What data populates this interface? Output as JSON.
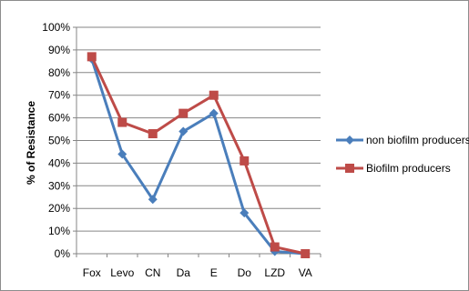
{
  "chart_data": {
    "type": "line",
    "title": "",
    "xlabel": "",
    "ylabel": "% of Resistance",
    "categories": [
      "Fox",
      "Levo",
      "CN",
      "Da",
      "E",
      "Do",
      "LZD",
      "VA"
    ],
    "y_ticks": [
      "0%",
      "10%",
      "20%",
      "30%",
      "40%",
      "50%",
      "60%",
      "70%",
      "80%",
      "90%",
      "100%"
    ],
    "ylim": [
      0,
      100
    ],
    "grid": true,
    "legend_position": "right",
    "series": [
      {
        "name": "non biofilm producers",
        "color": "#4a7ebb",
        "marker": "diamond",
        "values": [
          86,
          44,
          24,
          54,
          62,
          18,
          1,
          0
        ]
      },
      {
        "name": "Biofilm producers",
        "color": "#be4b48",
        "marker": "square",
        "values": [
          87,
          58,
          53,
          62,
          70,
          41,
          3,
          0
        ]
      }
    ]
  }
}
